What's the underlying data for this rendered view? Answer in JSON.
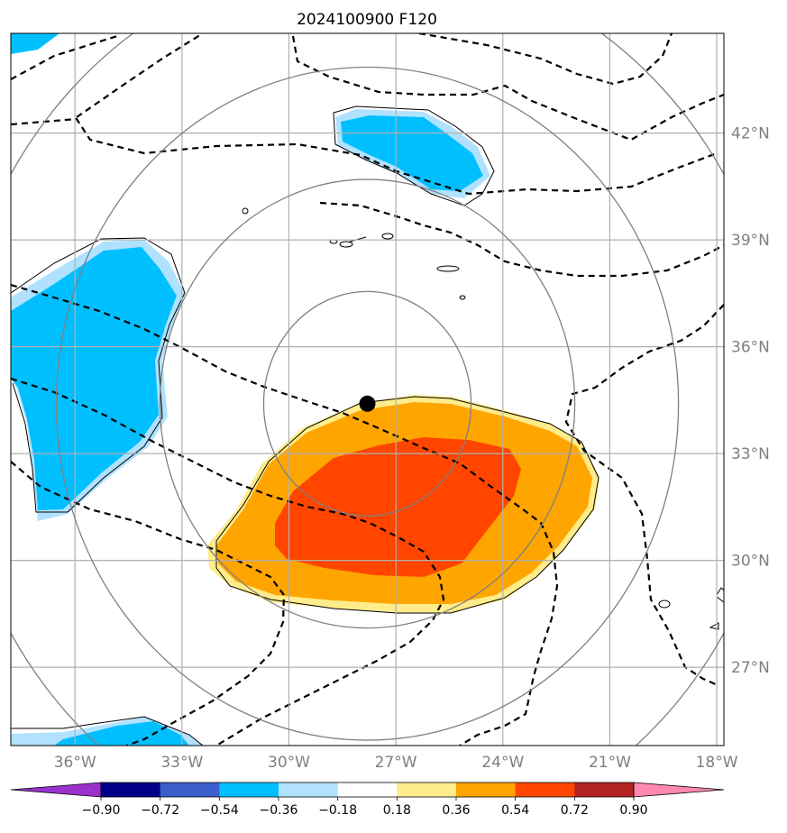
{
  "title": "2024100900 F120",
  "map": {
    "lon_range": [
      -37.8,
      -17.8
    ],
    "lat_range": [
      24.8,
      44.8
    ],
    "lon_ticks": [
      {
        "value": -36,
        "label": "36°W"
      },
      {
        "value": -33,
        "label": "33°W"
      },
      {
        "value": -30,
        "label": "30°W"
      },
      {
        "value": -27,
        "label": "27°W"
      },
      {
        "value": -24,
        "label": "24°W"
      },
      {
        "value": -21,
        "label": "21°W"
      },
      {
        "value": -18,
        "label": "18°W"
      }
    ],
    "lat_ticks": [
      {
        "value": 42,
        "label": "42°N"
      },
      {
        "value": 39,
        "label": "39°N"
      },
      {
        "value": 36,
        "label": "36°N"
      },
      {
        "value": 33,
        "label": "33°N"
      },
      {
        "value": 30,
        "label": "30°N"
      },
      {
        "value": 27,
        "label": "27°N"
      }
    ],
    "center_marker": {
      "lon": -27.8,
      "lat": 34.4
    },
    "range_ring_radii_deg": [
      3,
      6,
      9,
      12
    ],
    "grid_color": "#b0b0b0",
    "ring_color": "#808080"
  },
  "colorbar": {
    "levels": [
      "−0.90",
      "−0.72",
      "−0.54",
      "−0.36",
      "−0.18",
      "0.18",
      "0.36",
      "0.54",
      "0.72",
      "0.90"
    ],
    "colors": [
      "#9932cc",
      "#00008b",
      "#3a5fcd",
      "#00bfff",
      "#b0e2ff",
      "#ffffff",
      "#ffec8b",
      "#ffa500",
      "#ff4500",
      "#b22222",
      "#ff88b0"
    ],
    "extend": "both"
  }
}
